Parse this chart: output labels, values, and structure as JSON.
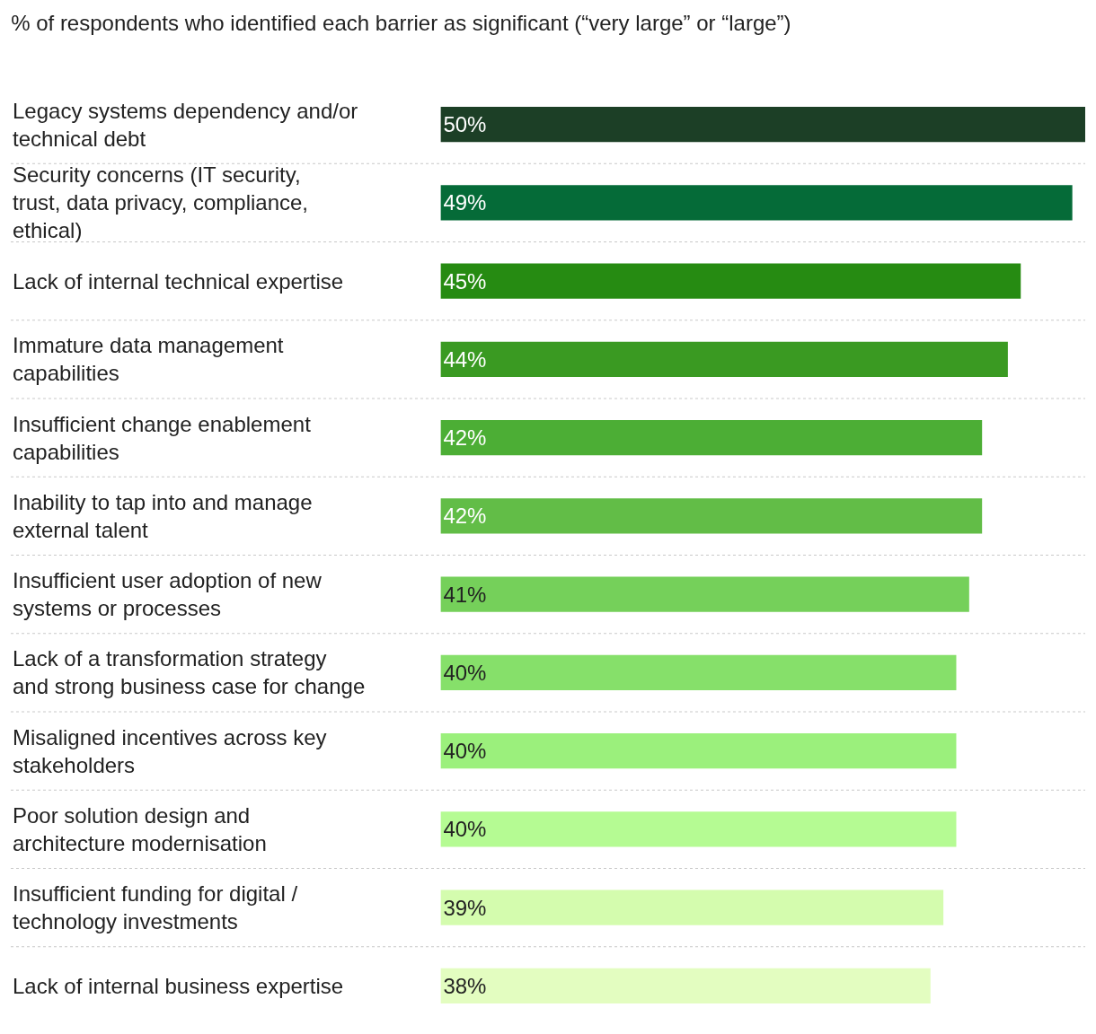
{
  "chart_data": {
    "type": "bar",
    "orientation": "horizontal",
    "title": "% of respondents who identified each barrier as significant (“very large” or “large”)",
    "categories": [
      "Legacy systems dependency and/or technical debt",
      "Security concerns (IT security, trust, data privacy, compliance, ethical)",
      "Lack of internal technical expertise",
      "Immature data management capabilities",
      "Insufficient change enablement capabilities",
      "Inability to tap into and manage external talent",
      "Insufficient user adoption of new systems or processes",
      "Lack of a transformation strategy and strong business case for change",
      "Misaligned incentives across key stakeholders",
      "Poor solution design and architecture modernisation",
      "Insufficient funding for digital / technology investments",
      "Lack of internal business expertise"
    ],
    "values": [
      50,
      49,
      45,
      44,
      42,
      42,
      41,
      40,
      40,
      40,
      39,
      38
    ],
    "value_labels": [
      "50%",
      "49%",
      "45%",
      "44%",
      "42%",
      "42%",
      "41%",
      "40%",
      "40%",
      "40%",
      "39%",
      "38%"
    ],
    "colors": [
      "#1c3f26",
      "#056b38",
      "#268b12",
      "#3a9a22",
      "#4cae35",
      "#62bd47",
      "#75d05a",
      "#86e06a",
      "#9bf07c",
      "#b5fb93",
      "#d4fcae",
      "#e3fdc0"
    ],
    "xlim": [
      0,
      50
    ],
    "grid": "y",
    "legend": false,
    "tick_labels": false
  }
}
